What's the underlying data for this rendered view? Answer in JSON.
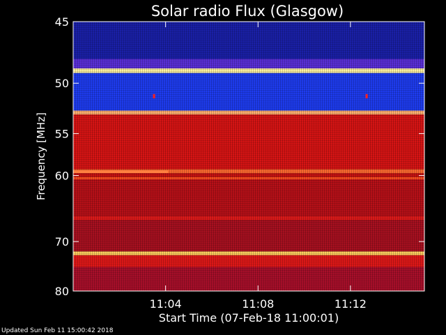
{
  "chart_data": {
    "type": "heatmap",
    "title": "Solar radio Flux (Glasgow)",
    "xlabel": "Start Time (07-Feb-18 11:00:01)",
    "ylabel": "Frequency [MHz]",
    "x_start_minutes": 0,
    "x_end_minutes": 15.2,
    "x_ticks": [
      {
        "minutes": 4,
        "label": "11:04"
      },
      {
        "minutes": 8,
        "label": "11:08"
      },
      {
        "minutes": 12,
        "label": "11:12"
      }
    ],
    "y_axis": "reciprocal",
    "y_range_mhz": [
      45,
      80
    ],
    "y_ticks": [
      {
        "mhz": 45,
        "label": "45"
      },
      {
        "mhz": 50,
        "label": "50"
      },
      {
        "mhz": 55,
        "label": "55"
      },
      {
        "mhz": 60,
        "label": "60"
      },
      {
        "mhz": 70,
        "label": "70"
      },
      {
        "mhz": 80,
        "label": "80"
      }
    ],
    "bands": [
      {
        "from_mhz": 45,
        "to_mhz": 47.9,
        "level": "low",
        "color": "#1a20a8"
      },
      {
        "from_mhz": 47.9,
        "to_mhz": 48.7,
        "level": "medium",
        "color": "#5a2fd8"
      },
      {
        "from_mhz": 48.7,
        "to_mhz": 49.1,
        "level": "very high",
        "color": "#fff3a0"
      },
      {
        "from_mhz": 49.1,
        "to_mhz": 52.6,
        "level": "low",
        "color": "#1e3cf0"
      },
      {
        "from_mhz": 52.6,
        "to_mhz": 53.0,
        "level": "high",
        "color": "#ffb070"
      },
      {
        "from_mhz": 53.0,
        "to_mhz": 59.2,
        "level": "medium-high",
        "color": "#d81414"
      },
      {
        "from_mhz": 59.2,
        "to_mhz": 59.7,
        "level": "high",
        "color": "#ff6a30"
      },
      {
        "from_mhz": 59.7,
        "to_mhz": 60.2,
        "level": "medium-high",
        "color": "#c81212"
      },
      {
        "from_mhz": 60.2,
        "to_mhz": 60.5,
        "level": "high",
        "color": "#ff5020"
      },
      {
        "from_mhz": 60.5,
        "to_mhz": 65.8,
        "level": "medium",
        "color": "#b81018"
      },
      {
        "from_mhz": 65.8,
        "to_mhz": 66.4,
        "level": "medium-high",
        "color": "#e01a1a"
      },
      {
        "from_mhz": 66.4,
        "to_mhz": 71.8,
        "level": "medium",
        "color": "#a81020"
      },
      {
        "from_mhz": 71.8,
        "to_mhz": 72.5,
        "level": "very high",
        "color": "#ffd060"
      },
      {
        "from_mhz": 72.5,
        "to_mhz": 74.8,
        "level": "medium-high",
        "color": "#e01818"
      },
      {
        "from_mhz": 74.8,
        "to_mhz": 80,
        "level": "medium",
        "color": "#a80f2a"
      }
    ],
    "features": [
      {
        "mhz": 59.5,
        "from_minutes": 0,
        "to_minutes": 4.1,
        "level": "high",
        "color": "#ff8040"
      },
      {
        "mhz": 51.2,
        "at_minutes": 3.5,
        "level": "medium-high",
        "color": "#ff2020"
      },
      {
        "mhz": 51.2,
        "at_minutes": 12.7,
        "level": "medium-high",
        "color": "#ff2020"
      }
    ]
  },
  "footer": {
    "updated": "Updated Sun Feb 11 15:00:42 2018"
  }
}
